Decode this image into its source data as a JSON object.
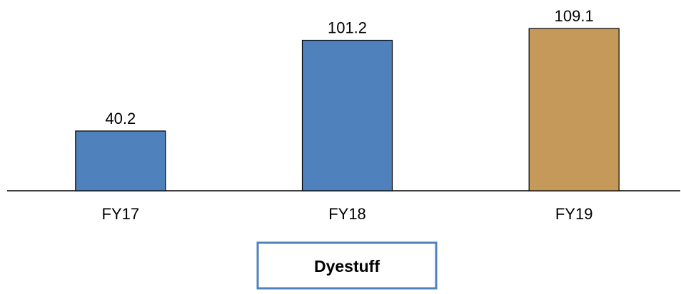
{
  "chart_data": {
    "type": "bar",
    "title": "Dyestuff",
    "categories": [
      "FY17",
      "FY18",
      "FY19"
    ],
    "values": [
      40.2,
      101.2,
      109.1
    ],
    "colors": [
      "#4f81bd",
      "#4f81bd",
      "#c4995a"
    ]
  }
}
